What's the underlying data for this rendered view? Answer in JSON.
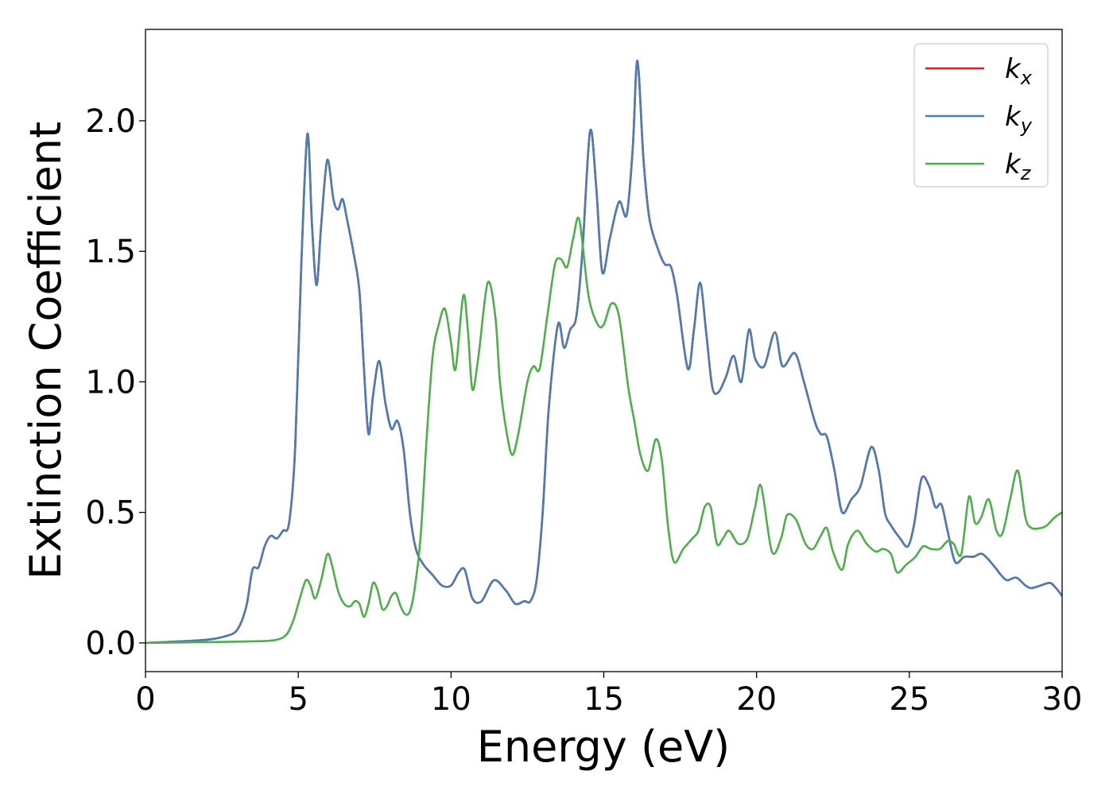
{
  "chart_data": {
    "type": "line",
    "title": "",
    "xlabel": "Energy (eV)",
    "ylabel": "Extinction Coefficient",
    "xlim": [
      0,
      30
    ],
    "ylim": [
      -0.11,
      2.35
    ],
    "xticks": [
      0,
      5,
      10,
      15,
      20,
      25,
      30
    ],
    "xtick_labels": [
      "0",
      "5",
      "10",
      "15",
      "20",
      "25",
      "30"
    ],
    "yticks": [
      0.0,
      0.5,
      1.0,
      1.5,
      2.0
    ],
    "ytick_labels": [
      "0.0",
      "0.5",
      "1.0",
      "1.5",
      "2.0"
    ],
    "grid": false,
    "legend_position": "top-right",
    "series": [
      {
        "name": "k_x",
        "label_main": "k",
        "label_sub": "x",
        "color": "#e41a1c",
        "x": [
          0,
          1,
          2,
          2.6,
          3.0,
          3.3,
          3.5,
          3.7,
          3.9,
          4.1,
          4.3,
          4.5,
          4.7,
          4.9,
          5.1,
          5.3,
          5.45,
          5.6,
          5.75,
          5.95,
          6.15,
          6.3,
          6.45,
          6.6,
          6.8,
          7.0,
          7.15,
          7.3,
          7.45,
          7.65,
          7.85,
          8.05,
          8.25,
          8.45,
          8.65,
          8.85,
          9.1,
          9.4,
          9.7,
          10.0,
          10.25,
          10.45,
          10.7,
          11.0,
          11.4,
          11.8,
          12.1,
          12.4,
          12.6,
          12.8,
          13.0,
          13.2,
          13.5,
          13.7,
          13.9,
          14.1,
          14.3,
          14.55,
          14.75,
          14.95,
          15.2,
          15.5,
          15.75,
          15.95,
          16.1,
          16.3,
          16.5,
          16.8,
          17.0,
          17.2,
          17.4,
          17.75,
          17.95,
          18.15,
          18.35,
          18.55,
          18.75,
          19.0,
          19.25,
          19.5,
          19.75,
          19.95,
          20.25,
          20.6,
          20.85,
          21.25,
          21.55,
          21.9,
          22.1,
          22.3,
          22.55,
          22.8,
          23.1,
          23.4,
          23.75,
          24.0,
          24.2,
          24.4,
          24.7,
          24.95,
          25.15,
          25.4,
          25.65,
          25.85,
          26.05,
          26.25,
          26.5,
          26.8,
          27.1,
          27.4,
          27.8,
          28.0,
          28.2,
          28.5,
          28.8,
          29.0,
          29.3,
          29.6,
          29.8,
          30
        ],
        "y": [
          0.0,
          0.005,
          0.012,
          0.025,
          0.05,
          0.14,
          0.28,
          0.29,
          0.37,
          0.41,
          0.4,
          0.43,
          0.46,
          0.75,
          1.45,
          1.95,
          1.6,
          1.37,
          1.6,
          1.85,
          1.7,
          1.66,
          1.7,
          1.62,
          1.5,
          1.35,
          1.05,
          0.8,
          0.95,
          1.08,
          0.92,
          0.82,
          0.85,
          0.74,
          0.5,
          0.36,
          0.3,
          0.26,
          0.22,
          0.22,
          0.27,
          0.28,
          0.17,
          0.16,
          0.24,
          0.2,
          0.15,
          0.16,
          0.16,
          0.24,
          0.5,
          0.9,
          1.22,
          1.13,
          1.2,
          1.25,
          1.5,
          1.96,
          1.75,
          1.42,
          1.55,
          1.69,
          1.64,
          1.9,
          2.23,
          1.85,
          1.62,
          1.5,
          1.45,
          1.44,
          1.33,
          1.05,
          1.2,
          1.38,
          1.19,
          0.98,
          0.96,
          1.02,
          1.1,
          1.0,
          1.2,
          1.09,
          1.06,
          1.19,
          1.06,
          1.11,
          1.0,
          0.85,
          0.8,
          0.79,
          0.66,
          0.5,
          0.55,
          0.6,
          0.75,
          0.66,
          0.5,
          0.45,
          0.4,
          0.37,
          0.45,
          0.63,
          0.6,
          0.52,
          0.53,
          0.43,
          0.31,
          0.33,
          0.33,
          0.34,
          0.29,
          0.26,
          0.24,
          0.25,
          0.22,
          0.21,
          0.22,
          0.23,
          0.21,
          0.18
        ]
      },
      {
        "name": "k_y",
        "label_main": "k",
        "label_sub": "y",
        "color": "#4a7cb5",
        "x": [
          0,
          1,
          2,
          2.6,
          3.0,
          3.3,
          3.5,
          3.7,
          3.9,
          4.1,
          4.3,
          4.5,
          4.7,
          4.9,
          5.1,
          5.3,
          5.45,
          5.6,
          5.75,
          5.95,
          6.15,
          6.3,
          6.45,
          6.6,
          6.8,
          7.0,
          7.15,
          7.3,
          7.45,
          7.65,
          7.85,
          8.05,
          8.25,
          8.45,
          8.65,
          8.85,
          9.1,
          9.4,
          9.7,
          10.0,
          10.25,
          10.45,
          10.7,
          11.0,
          11.4,
          11.8,
          12.1,
          12.4,
          12.6,
          12.8,
          13.0,
          13.2,
          13.5,
          13.7,
          13.9,
          14.1,
          14.3,
          14.55,
          14.75,
          14.95,
          15.2,
          15.5,
          15.75,
          15.95,
          16.1,
          16.3,
          16.5,
          16.8,
          17.0,
          17.2,
          17.4,
          17.75,
          17.95,
          18.15,
          18.35,
          18.55,
          18.75,
          19.0,
          19.25,
          19.5,
          19.75,
          19.95,
          20.25,
          20.6,
          20.85,
          21.25,
          21.55,
          21.9,
          22.1,
          22.3,
          22.55,
          22.8,
          23.1,
          23.4,
          23.75,
          24.0,
          24.2,
          24.4,
          24.7,
          24.95,
          25.15,
          25.4,
          25.65,
          25.85,
          26.05,
          26.25,
          26.5,
          26.8,
          27.1,
          27.4,
          27.8,
          28.0,
          28.2,
          28.5,
          28.8,
          29.0,
          29.3,
          29.6,
          29.8,
          30
        ],
        "y": [
          0.0,
          0.005,
          0.012,
          0.025,
          0.05,
          0.14,
          0.28,
          0.29,
          0.37,
          0.41,
          0.4,
          0.43,
          0.46,
          0.75,
          1.45,
          1.95,
          1.6,
          1.37,
          1.6,
          1.85,
          1.7,
          1.66,
          1.7,
          1.62,
          1.5,
          1.35,
          1.05,
          0.8,
          0.95,
          1.08,
          0.92,
          0.82,
          0.85,
          0.74,
          0.5,
          0.36,
          0.3,
          0.26,
          0.22,
          0.22,
          0.27,
          0.28,
          0.17,
          0.16,
          0.24,
          0.2,
          0.15,
          0.16,
          0.16,
          0.24,
          0.5,
          0.9,
          1.22,
          1.13,
          1.2,
          1.25,
          1.5,
          1.96,
          1.75,
          1.42,
          1.55,
          1.69,
          1.64,
          1.9,
          2.23,
          1.85,
          1.62,
          1.5,
          1.45,
          1.44,
          1.33,
          1.05,
          1.2,
          1.38,
          1.19,
          0.98,
          0.96,
          1.02,
          1.1,
          1.0,
          1.2,
          1.09,
          1.06,
          1.19,
          1.06,
          1.11,
          1.0,
          0.85,
          0.8,
          0.79,
          0.66,
          0.5,
          0.55,
          0.6,
          0.75,
          0.66,
          0.5,
          0.45,
          0.4,
          0.37,
          0.45,
          0.63,
          0.6,
          0.52,
          0.53,
          0.43,
          0.31,
          0.33,
          0.33,
          0.34,
          0.29,
          0.26,
          0.24,
          0.25,
          0.22,
          0.21,
          0.22,
          0.23,
          0.21,
          0.18
        ]
      },
      {
        "name": "k_z",
        "label_main": "k",
        "label_sub": "z",
        "color": "#4daf4a",
        "x": [
          0,
          2,
          3.5,
          4.2,
          4.6,
          4.85,
          5.05,
          5.25,
          5.4,
          5.55,
          5.75,
          5.95,
          6.1,
          6.3,
          6.5,
          6.7,
          6.85,
          7.0,
          7.15,
          7.3,
          7.45,
          7.6,
          7.75,
          7.9,
          8.05,
          8.2,
          8.35,
          8.5,
          8.65,
          8.8,
          9.0,
          9.2,
          9.4,
          9.6,
          9.8,
          10.0,
          10.15,
          10.4,
          10.55,
          10.7,
          10.9,
          11.2,
          11.45,
          11.6,
          11.8,
          12.0,
          12.2,
          12.5,
          12.7,
          12.9,
          13.15,
          13.4,
          13.6,
          13.8,
          14.0,
          14.2,
          14.5,
          14.8,
          15.0,
          15.25,
          15.5,
          15.8,
          16.0,
          16.2,
          16.45,
          16.7,
          16.9,
          17.1,
          17.3,
          17.6,
          17.9,
          18.1,
          18.3,
          18.5,
          18.7,
          18.9,
          19.1,
          19.4,
          19.7,
          19.95,
          20.15,
          20.5,
          20.8,
          21.0,
          21.3,
          21.6,
          21.85,
          22.1,
          22.3,
          22.5,
          22.8,
          23.0,
          23.3,
          23.6,
          23.9,
          24.15,
          24.4,
          24.6,
          24.9,
          25.2,
          25.45,
          25.7,
          26.0,
          26.25,
          26.45,
          26.7,
          26.95,
          27.15,
          27.35,
          27.6,
          27.85,
          28.05,
          28.3,
          28.55,
          28.8,
          29.0,
          29.3,
          29.5,
          29.75,
          30
        ],
        "y": [
          0.0,
          0.003,
          0.006,
          0.01,
          0.03,
          0.09,
          0.17,
          0.24,
          0.22,
          0.17,
          0.24,
          0.34,
          0.3,
          0.2,
          0.15,
          0.14,
          0.16,
          0.15,
          0.1,
          0.15,
          0.23,
          0.2,
          0.13,
          0.14,
          0.18,
          0.19,
          0.14,
          0.11,
          0.12,
          0.2,
          0.4,
          0.78,
          1.1,
          1.22,
          1.28,
          1.15,
          1.05,
          1.33,
          1.2,
          0.97,
          1.1,
          1.38,
          1.25,
          1.0,
          0.82,
          0.72,
          0.8,
          1.0,
          1.06,
          1.05,
          1.25,
          1.45,
          1.47,
          1.44,
          1.55,
          1.62,
          1.33,
          1.22,
          1.22,
          1.3,
          1.25,
          0.98,
          0.85,
          0.72,
          0.66,
          0.78,
          0.7,
          0.45,
          0.31,
          0.36,
          0.4,
          0.43,
          0.52,
          0.52,
          0.38,
          0.4,
          0.43,
          0.38,
          0.4,
          0.52,
          0.6,
          0.35,
          0.4,
          0.49,
          0.47,
          0.38,
          0.36,
          0.41,
          0.44,
          0.35,
          0.28,
          0.38,
          0.43,
          0.38,
          0.35,
          0.36,
          0.34,
          0.27,
          0.3,
          0.33,
          0.37,
          0.36,
          0.36,
          0.39,
          0.38,
          0.34,
          0.56,
          0.46,
          0.48,
          0.55,
          0.43,
          0.42,
          0.55,
          0.66,
          0.48,
          0.44,
          0.44,
          0.45,
          0.48,
          0.5
        ]
      }
    ]
  }
}
